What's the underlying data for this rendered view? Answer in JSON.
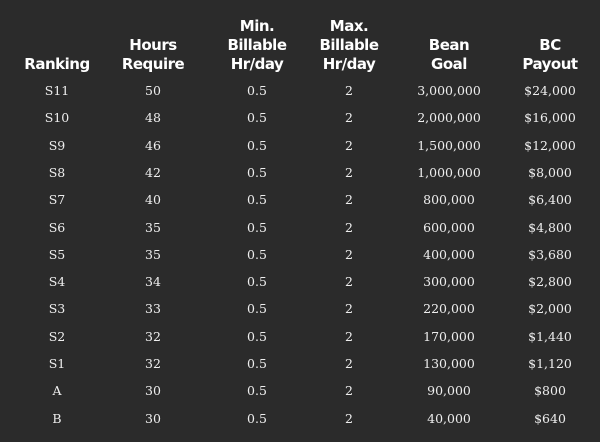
{
  "table": {
    "headers": [
      "Ranking",
      "Hours\nRequire",
      "Min.\nBillable\nHr/day",
      "Max.\nBillable\nHr/day",
      "Bean\nGoal",
      "BC\nPayout"
    ],
    "rows": [
      [
        "S11",
        "50",
        "0.5",
        "2",
        "3,000,000",
        "$24,000"
      ],
      [
        "S10",
        "48",
        "0.5",
        "2",
        "2,000,000",
        "$16,000"
      ],
      [
        "S9",
        "46",
        "0.5",
        "2",
        "1,500,000",
        "$12,000"
      ],
      [
        "S8",
        "42",
        "0.5",
        "2",
        "1,000,000",
        "$8,000"
      ],
      [
        "S7",
        "40",
        "0.5",
        "2",
        "800,000",
        "$6,400"
      ],
      [
        "S6",
        "35",
        "0.5",
        "2",
        "600,000",
        "$4,800"
      ],
      [
        "S5",
        "35",
        "0.5",
        "2",
        "400,000",
        "$3,680"
      ],
      [
        "S4",
        "34",
        "0.5",
        "2",
        "300,000",
        "$2,800"
      ],
      [
        "S3",
        "33",
        "0.5",
        "2",
        "220,000",
        "$2,000"
      ],
      [
        "S2",
        "32",
        "0.5",
        "2",
        "170,000",
        "$1,440"
      ],
      [
        "S1",
        "32",
        "0.5",
        "2",
        "130,000",
        "$1,120"
      ],
      [
        "A",
        "30",
        "0.5",
        "2",
        "90,000",
        "$800"
      ],
      [
        "B",
        "30",
        "0.5",
        "2",
        "40,000",
        "$640"
      ]
    ]
  }
}
